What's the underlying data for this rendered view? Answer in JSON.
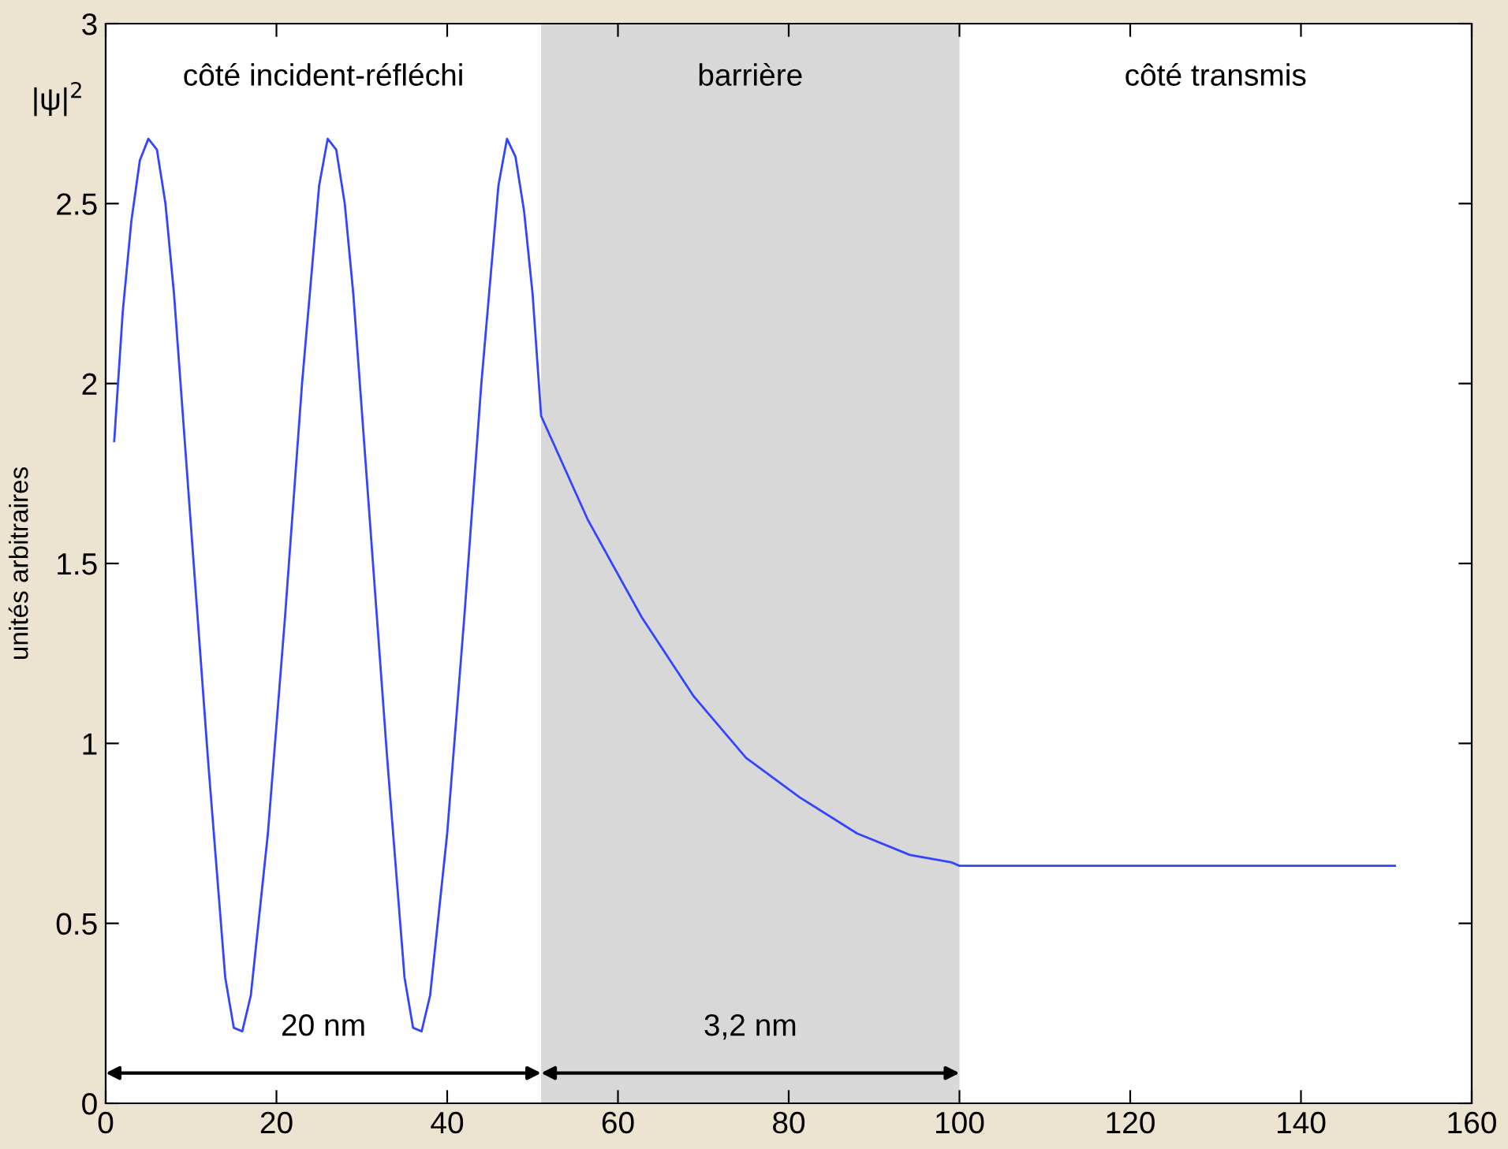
{
  "chart_data": {
    "type": "line",
    "ylabel": "unités arbitraires",
    "title": "|ψ|$^{2}$",
    "annotations": [
      "côté incident-réfléchi",
      "côté transmis",
      "20 nm",
      "3,2 nm"
    ],
    "series": [
      {
        "color": "#3344ff",
        "x": [
          1,
          2,
          3,
          4,
          5,
          6,
          7,
          8,
          10,
          12,
          14,
          15,
          16,
          17,
          19,
          21,
          23,
          25,
          26,
          27,
          28,
          29,
          31,
          33,
          35,
          36,
          37,
          38,
          40,
          42,
          44,
          46,
          47,
          48,
          49,
          50,
          51,
          56.5,
          62.8,
          68.9,
          75,
          81.3,
          88,
          94.2,
          99,
          100,
          151
        ],
        "values": [
          1.84,
          2.2,
          2.45,
          2.62,
          2.68,
          2.65,
          2.5,
          2.25,
          1.6,
          0.95,
          0.35,
          0.21,
          0.2,
          0.3,
          0.75,
          1.35,
          2.0,
          2.55,
          2.68,
          2.65,
          2.5,
          2.25,
          1.6,
          0.95,
          0.35,
          0.21,
          0.2,
          0.3,
          0.75,
          1.35,
          2.0,
          2.55,
          2.68,
          2.63,
          2.48,
          2.25,
          1.91,
          1.62,
          1.35,
          1.13,
          0.96,
          0.85,
          0.75,
          0.69,
          0.67,
          0.66,
          0.66
        ]
      }
    ],
    "bands": [
      {
        "axis": "x",
        "from": 51,
        "to": 100,
        "label": "barrière",
        "color": "#d8d8d8"
      }
    ],
    "xlim": [
      0,
      160
    ],
    "xticks": [
      0,
      20,
      40,
      60,
      80,
      100,
      120,
      140,
      160
    ],
    "ylim": [
      0,
      3
    ],
    "yticks": [
      0,
      0.5,
      1,
      1.5,
      2,
      2.5,
      3
    ],
    "grid": false,
    "legend": false,
    "marker": "none",
    "line_style": "solid"
  }
}
